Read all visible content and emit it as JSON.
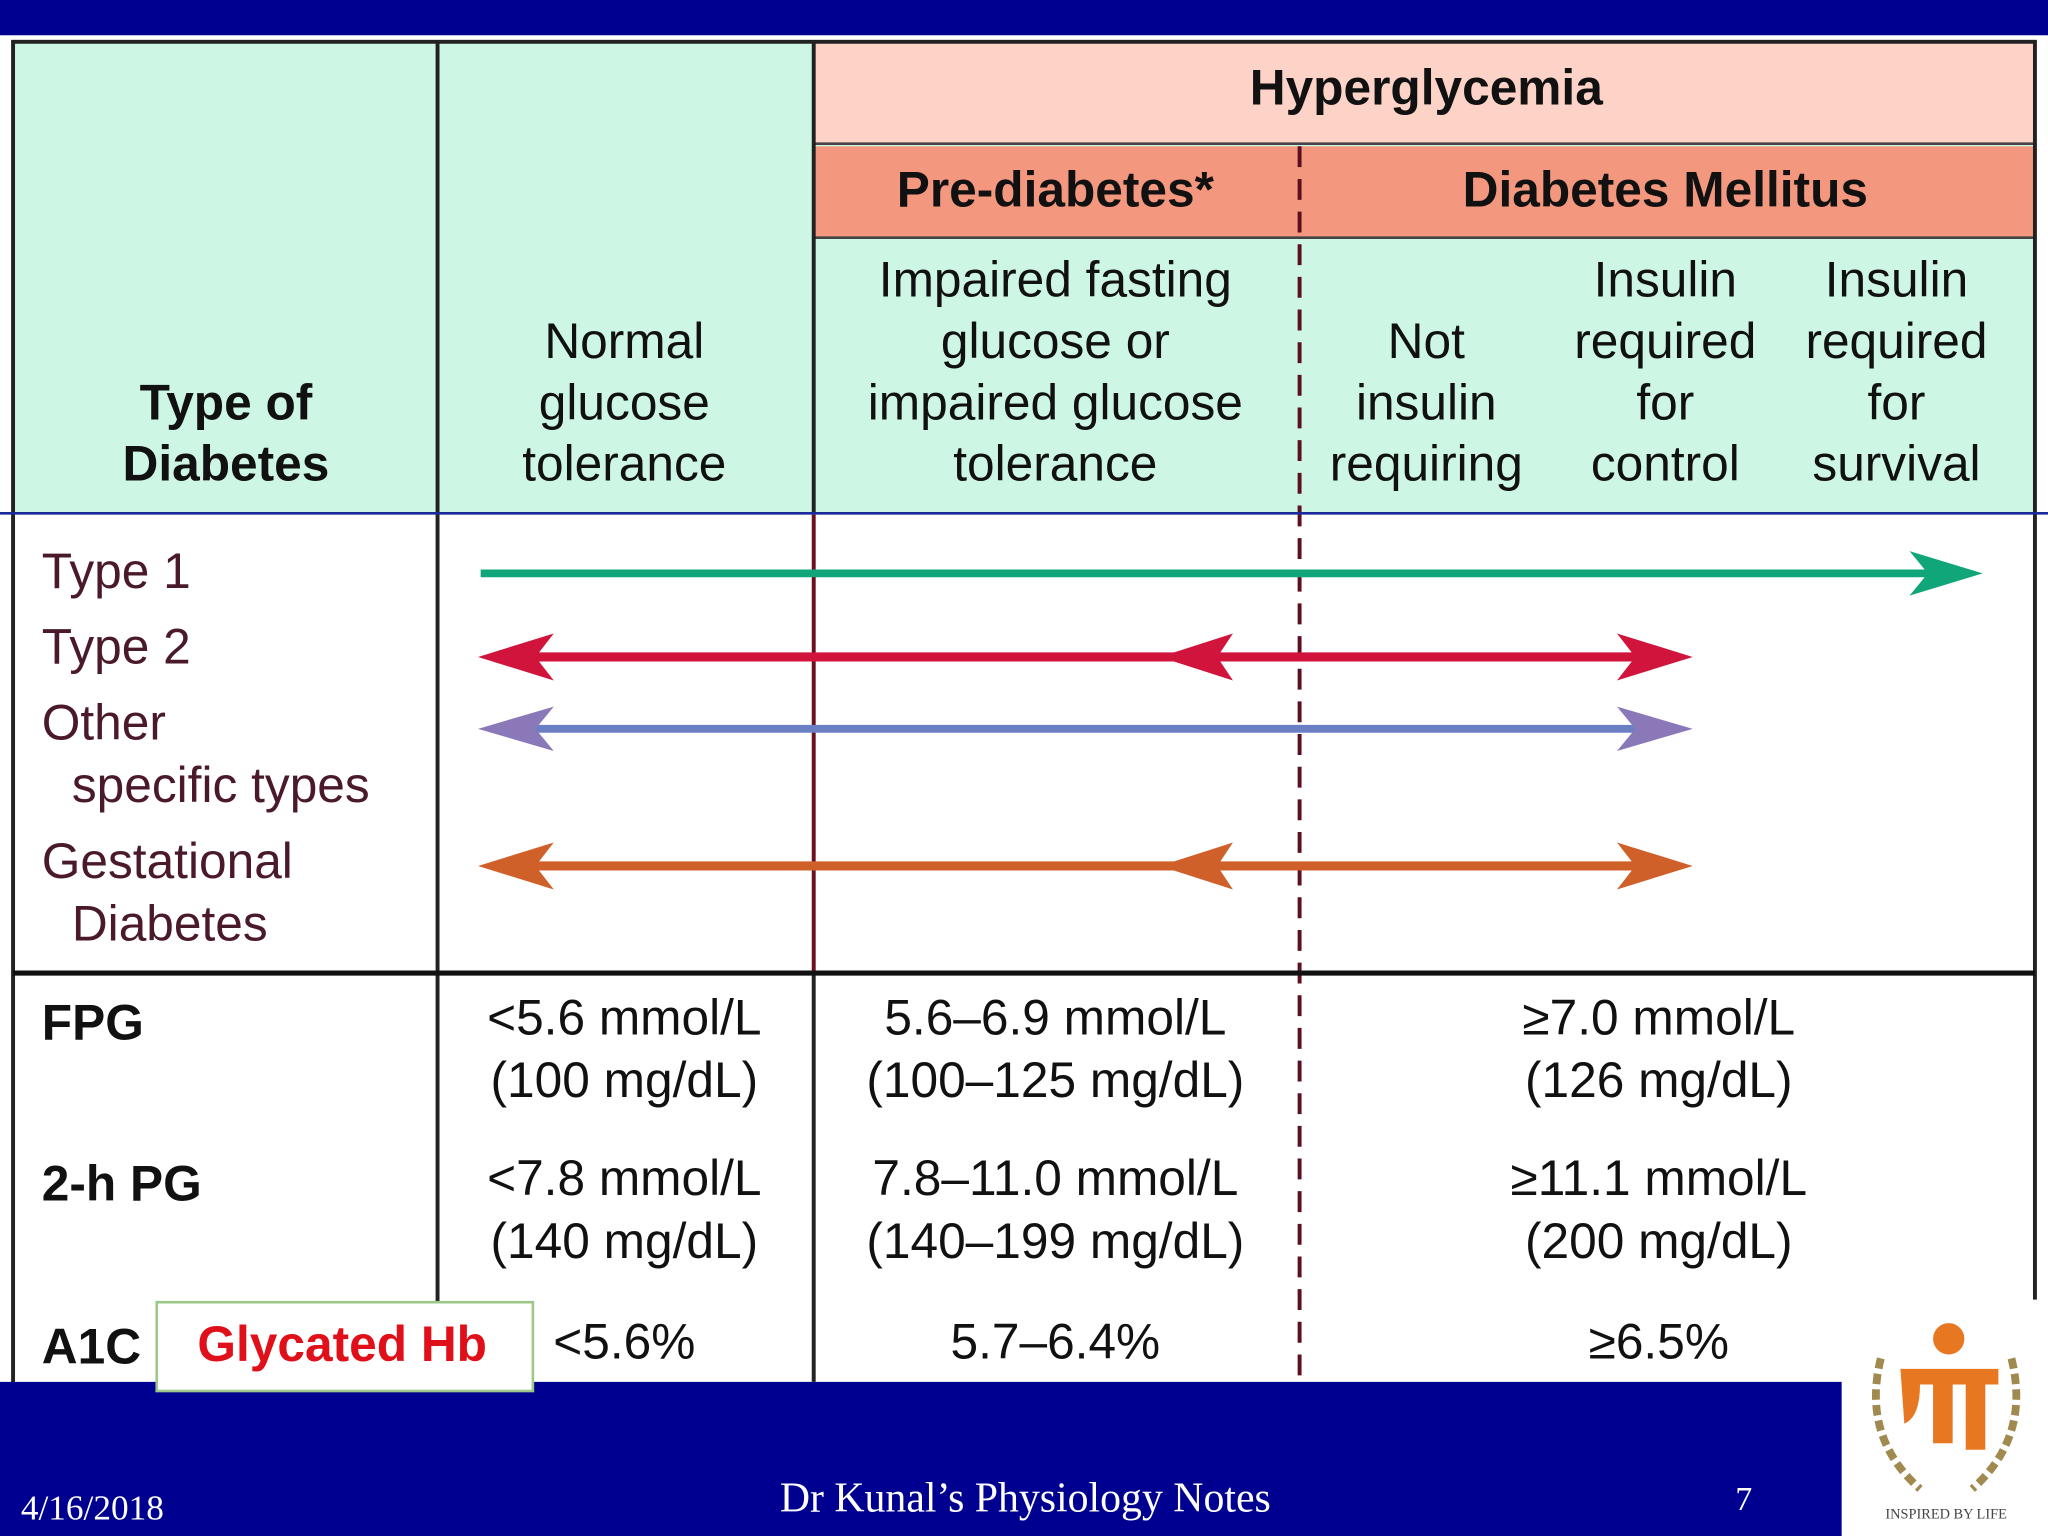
{
  "header": {
    "group": "Hyperglycemia",
    "subgroups": [
      "Pre-diabetes*",
      "Diabetes Mellitus"
    ],
    "columns": [
      [
        "Type of",
        "Diabetes"
      ],
      [
        "Normal",
        "glucose",
        "tolerance"
      ],
      [
        "Impaired fasting",
        "glucose or",
        "impaired glucose",
        "tolerance"
      ],
      [
        "Not",
        "insulin",
        "requiring"
      ],
      [
        "Insulin",
        "required",
        "for",
        "control"
      ],
      [
        "Insulin",
        "required",
        "for",
        "survival"
      ]
    ]
  },
  "types": [
    [
      "Type 1"
    ],
    [
      "Type 2"
    ],
    [
      "Other",
      "specific types"
    ],
    [
      "Gestational",
      "Diabetes"
    ]
  ],
  "tests": [
    {
      "name": "FPG",
      "normal": [
        "<5.6 mmol/L",
        "(100 mg/dL)"
      ],
      "prediabetes": [
        "5.6–6.9 mmol/L",
        "(100–125 mg/dL)"
      ],
      "diabetes": [
        "≥7.0 mmol/L",
        "(126 mg/dL)"
      ]
    },
    {
      "name": "2-h PG",
      "normal": [
        "<7.8 mmol/L",
        "(140 mg/dL)"
      ],
      "prediabetes": [
        "7.8–11.0 mmol/L",
        "(140–199 mg/dL)"
      ],
      "diabetes": [
        "≥11.1 mmol/L",
        "(200 mg/dL)"
      ]
    },
    {
      "name": "A1C",
      "normal": [
        "<5.6%"
      ],
      "prediabetes": [
        "5.7–6.4%"
      ],
      "diabetes": [
        "≥6.5%"
      ]
    }
  ],
  "annotation": "Glycated Hb",
  "footer": {
    "date": "4/16/2018",
    "title": "Dr Kunal’s Physiology Notes",
    "page": 7
  },
  "logo": "INSPIRED BY LIFE"
}
